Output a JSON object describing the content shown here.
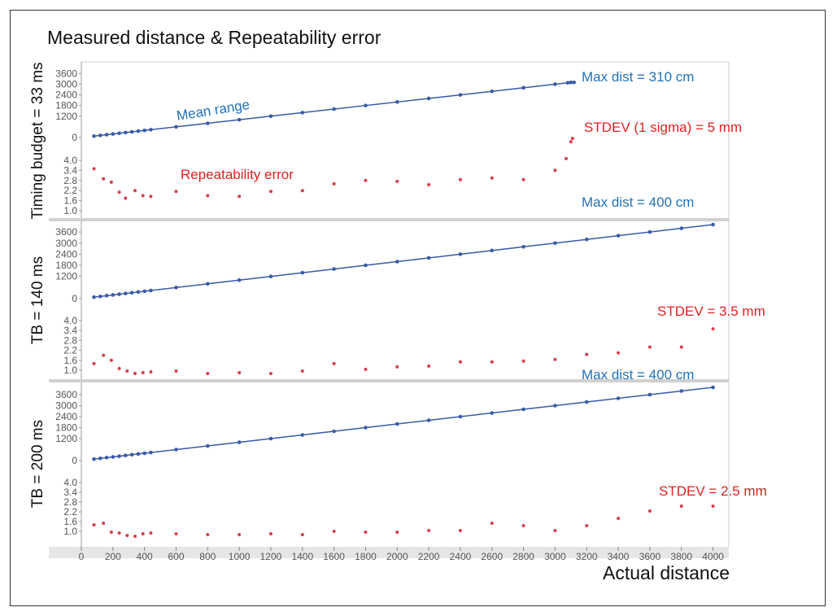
{
  "title": "Measured distance & Repeatability error",
  "x_axis": {
    "label": "Actual distance",
    "ticks": [
      0,
      200,
      400,
      600,
      800,
      1000,
      1200,
      1400,
      1600,
      1800,
      2000,
      2200,
      2400,
      2600,
      2800,
      3000,
      3200,
      3400,
      3600,
      3800,
      4000
    ],
    "range": [
      0,
      4100
    ]
  },
  "colors": {
    "mean": "#3a5ba8",
    "error": "#d83d4a",
    "annotation_blue": "#2272b8",
    "annotation_red": "#e02020"
  },
  "chart_data": [
    {
      "type": "scatter",
      "panel_label": "Timing budget = 33 ms",
      "mean_axis": {
        "ticks": [
          0,
          1200,
          1800,
          2400,
          3000,
          3600
        ],
        "range": [
          0,
          3800
        ]
      },
      "error_axis": {
        "ticks": [
          1.0,
          1.6,
          2.2,
          2.8,
          3.4,
          4.0
        ],
        "range": [
          1.0,
          4.0
        ]
      },
      "series": [
        {
          "name": "Mean range",
          "x": [
            80,
            120,
            160,
            200,
            240,
            280,
            320,
            360,
            400,
            440,
            600,
            800,
            1000,
            1200,
            1400,
            1600,
            1800,
            2000,
            2200,
            2400,
            2600,
            2800,
            3000,
            3080,
            3100,
            3120
          ],
          "y": [
            80,
            120,
            160,
            200,
            240,
            280,
            320,
            360,
            400,
            440,
            600,
            800,
            1000,
            1200,
            1400,
            1600,
            1800,
            2000,
            2200,
            2400,
            2600,
            2800,
            3000,
            3080,
            3100,
            3100
          ]
        },
        {
          "name": "Repeatability error",
          "x": [
            80,
            140,
            190,
            240,
            280,
            340,
            390,
            440,
            600,
            800,
            1000,
            1200,
            1400,
            1600,
            1800,
            2000,
            2200,
            2400,
            2600,
            2800,
            3000,
            3070,
            3100,
            3110
          ],
          "y": [
            3.5,
            2.9,
            2.7,
            2.1,
            1.75,
            2.2,
            1.9,
            1.85,
            2.15,
            1.9,
            1.85,
            2.15,
            2.2,
            2.6,
            2.8,
            2.75,
            2.55,
            2.85,
            2.95,
            2.85,
            3.4,
            4.1,
            5.1,
            5.3
          ]
        }
      ],
      "annotations": {
        "max_label": "Max dist = 310 cm",
        "mean_label": "Mean range",
        "stdev_label": "STDEV (1 sigma) = 5 mm",
        "error_label": "Repeatability error"
      }
    },
    {
      "type": "scatter",
      "panel_label": "TB = 140 ms",
      "mean_axis": {
        "ticks": [
          0,
          1200,
          1800,
          2400,
          3000,
          3600
        ],
        "range": [
          0,
          4000
        ]
      },
      "error_axis": {
        "ticks": [
          1.0,
          1.6,
          2.2,
          2.8,
          3.4,
          4.0
        ],
        "range": [
          0.8,
          4.0
        ]
      },
      "series": [
        {
          "name": "Mean range",
          "x": [
            80,
            120,
            160,
            200,
            240,
            280,
            320,
            360,
            400,
            440,
            600,
            800,
            1000,
            1200,
            1400,
            1600,
            1800,
            2000,
            2200,
            2400,
            2600,
            2800,
            3000,
            3200,
            3400,
            3600,
            3800,
            4000
          ],
          "y": [
            80,
            120,
            160,
            200,
            240,
            280,
            320,
            360,
            400,
            440,
            600,
            800,
            1000,
            1200,
            1400,
            1600,
            1800,
            2000,
            2200,
            2400,
            2600,
            2800,
            3000,
            3200,
            3400,
            3600,
            3800,
            4000
          ]
        },
        {
          "name": "Repeatability error",
          "x": [
            80,
            140,
            190,
            240,
            290,
            340,
            390,
            440,
            600,
            800,
            1000,
            1200,
            1400,
            1600,
            1800,
            2000,
            2200,
            2400,
            2600,
            2800,
            3000,
            3200,
            3400,
            3600,
            3800,
            4000
          ],
          "y": [
            1.4,
            1.9,
            1.6,
            1.1,
            0.95,
            0.8,
            0.85,
            0.9,
            0.95,
            0.8,
            0.85,
            0.8,
            0.95,
            1.4,
            1.05,
            1.2,
            1.25,
            1.5,
            1.5,
            1.55,
            1.65,
            1.95,
            2.05,
            2.4,
            2.4,
            3.5
          ]
        }
      ],
      "annotations": {
        "max_label": "Max dist = 400 cm",
        "stdev_label": "STDEV = 3.5 mm"
      }
    },
    {
      "type": "scatter",
      "panel_label": "TB = 200 ms",
      "mean_axis": {
        "ticks": [
          0,
          1200,
          1800,
          2400,
          3000,
          3600
        ],
        "range": [
          0,
          4000
        ]
      },
      "error_axis": {
        "ticks": [
          1.0,
          1.6,
          2.2,
          2.8,
          3.4,
          4.0
        ],
        "range": [
          0.8,
          4.0
        ]
      },
      "series": [
        {
          "name": "Mean range",
          "x": [
            80,
            120,
            160,
            200,
            240,
            280,
            320,
            360,
            400,
            440,
            600,
            800,
            1000,
            1200,
            1400,
            1600,
            1800,
            2000,
            2200,
            2400,
            2600,
            2800,
            3000,
            3200,
            3400,
            3600,
            3800,
            4000
          ],
          "y": [
            80,
            120,
            160,
            200,
            240,
            280,
            320,
            360,
            400,
            440,
            600,
            800,
            1000,
            1200,
            1400,
            1600,
            1800,
            2000,
            2200,
            2400,
            2600,
            2800,
            3000,
            3200,
            3400,
            3600,
            3800,
            4000
          ]
        },
        {
          "name": "Repeatability error",
          "x": [
            80,
            140,
            190,
            240,
            290,
            340,
            390,
            440,
            600,
            800,
            1000,
            1200,
            1400,
            1600,
            1800,
            2000,
            2200,
            2400,
            2600,
            2800,
            3000,
            3200,
            3400,
            3600,
            3800,
            4000
          ],
          "y": [
            1.4,
            1.5,
            0.95,
            0.9,
            0.75,
            0.7,
            0.85,
            0.9,
            0.85,
            0.8,
            0.8,
            0.85,
            0.8,
            1.0,
            0.95,
            0.95,
            1.05,
            1.05,
            1.5,
            1.35,
            1.05,
            1.35,
            1.8,
            2.25,
            2.55,
            2.55
          ]
        }
      ],
      "annotations": {
        "max_label": "Max dist = 400 cm",
        "stdev_label": "STDEV =  2.5 mm"
      }
    }
  ]
}
